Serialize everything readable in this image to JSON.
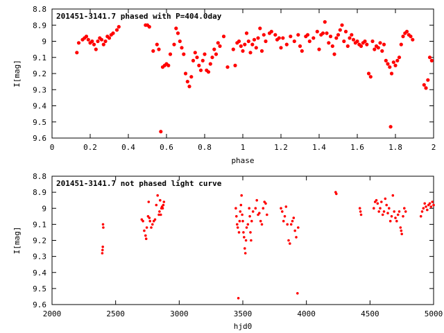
{
  "chart_data": [
    {
      "type": "scatter",
      "title": "201451-3141.7 phased with P=404.0day",
      "xlabel": "phase",
      "ylabel": "I[mag]",
      "xlim": [
        0,
        2
      ],
      "ylim": [
        9.6,
        8.8
      ],
      "y_inverted": true,
      "xticks": [
        "0",
        "0.2",
        "0.4",
        "0.6",
        "0.8",
        "1",
        "1.2",
        "1.4",
        "1.6",
        "1.8",
        "2"
      ],
      "xtick_values": [
        0,
        0.2,
        0.4,
        0.6,
        0.8,
        1.0,
        1.2,
        1.4,
        1.6,
        1.8,
        2.0
      ],
      "yticks": [
        "8.8",
        "8.9",
        "9",
        "9.1",
        "9.2",
        "9.3",
        "9.4",
        "9.5",
        "9.6"
      ],
      "ytick_values": [
        8.8,
        8.9,
        9.0,
        9.1,
        9.2,
        9.3,
        9.4,
        9.5,
        9.6
      ],
      "marker_color": "#ff0000",
      "points": [
        [
          0.13,
          9.07
        ],
        [
          0.14,
          9.01
        ],
        [
          0.16,
          8.99
        ],
        [
          0.17,
          8.98
        ],
        [
          0.18,
          8.97
        ],
        [
          0.19,
          8.99
        ],
        [
          0.2,
          9.01
        ],
        [
          0.21,
          9.0
        ],
        [
          0.22,
          9.02
        ],
        [
          0.23,
          9.05
        ],
        [
          0.24,
          9.0
        ],
        [
          0.25,
          8.98
        ],
        [
          0.26,
          8.99
        ],
        [
          0.27,
          9.02
        ],
        [
          0.28,
          9.0
        ],
        [
          0.29,
          8.97
        ],
        [
          0.3,
          8.98
        ],
        [
          0.31,
          8.96
        ],
        [
          0.32,
          8.95
        ],
        [
          0.34,
          8.93
        ],
        [
          0.35,
          8.91
        ],
        [
          0.49,
          8.9
        ],
        [
          0.5,
          8.9
        ],
        [
          0.51,
          8.91
        ],
        [
          0.53,
          9.06
        ],
        [
          0.55,
          9.02
        ],
        [
          0.56,
          9.05
        ],
        [
          0.57,
          9.56
        ],
        [
          0.58,
          9.16
        ],
        [
          0.59,
          9.15
        ],
        [
          0.6,
          9.14
        ],
        [
          0.61,
          9.15
        ],
        [
          0.62,
          9.08
        ],
        [
          0.64,
          9.02
        ],
        [
          0.65,
          8.92
        ],
        [
          0.66,
          8.95
        ],
        [
          0.67,
          9.0
        ],
        [
          0.68,
          9.04
        ],
        [
          0.69,
          9.08
        ],
        [
          0.7,
          9.2
        ],
        [
          0.71,
          9.25
        ],
        [
          0.72,
          9.28
        ],
        [
          0.73,
          9.22
        ],
        [
          0.74,
          9.12
        ],
        [
          0.75,
          9.07
        ],
        [
          0.76,
          9.1
        ],
        [
          0.77,
          9.15
        ],
        [
          0.78,
          9.18
        ],
        [
          0.79,
          9.12
        ],
        [
          0.8,
          9.08
        ],
        [
          0.81,
          9.18
        ],
        [
          0.82,
          9.19
        ],
        [
          0.83,
          9.14
        ],
        [
          0.84,
          9.1
        ],
        [
          0.85,
          9.05
        ],
        [
          0.86,
          9.08
        ],
        [
          0.87,
          9.01
        ],
        [
          0.88,
          9.03
        ],
        [
          0.9,
          8.97
        ],
        [
          0.92,
          9.16
        ],
        [
          0.95,
          9.05
        ],
        [
          0.96,
          9.15
        ],
        [
          0.97,
          9.01
        ],
        [
          0.98,
          9.0
        ],
        [
          0.99,
          9.03
        ],
        [
          1.0,
          9.06
        ],
        [
          1.01,
          9.02
        ],
        [
          1.02,
          8.95
        ],
        [
          1.03,
          9.0
        ],
        [
          1.04,
          9.07
        ],
        [
          1.05,
          9.02
        ],
        [
          1.06,
          8.99
        ],
        [
          1.07,
          9.04
        ],
        [
          1.08,
          8.98
        ],
        [
          1.09,
          8.92
        ],
        [
          1.1,
          9.06
        ],
        [
          1.11,
          8.96
        ],
        [
          1.12,
          9.0
        ],
        [
          1.14,
          8.95
        ],
        [
          1.15,
          8.94
        ],
        [
          1.17,
          8.96
        ],
        [
          1.18,
          8.99
        ],
        [
          1.19,
          8.98
        ],
        [
          1.2,
          9.04
        ],
        [
          1.21,
          8.98
        ],
        [
          1.23,
          9.02
        ],
        [
          1.25,
          8.97
        ],
        [
          1.27,
          9.0
        ],
        [
          1.29,
          8.96
        ],
        [
          1.3,
          9.03
        ],
        [
          1.31,
          9.06
        ],
        [
          1.33,
          8.97
        ],
        [
          1.34,
          8.96
        ],
        [
          1.35,
          9.0
        ],
        [
          1.37,
          8.98
        ],
        [
          1.39,
          8.94
        ],
        [
          1.4,
          9.05
        ],
        [
          1.41,
          8.96
        ],
        [
          1.42,
          8.95
        ],
        [
          1.43,
          8.88
        ],
        [
          1.44,
          8.95
        ],
        [
          1.45,
          9.01
        ],
        [
          1.46,
          8.97
        ],
        [
          1.47,
          9.03
        ],
        [
          1.48,
          9.08
        ],
        [
          1.49,
          8.98
        ],
        [
          1.5,
          8.96
        ],
        [
          1.51,
          8.93
        ],
        [
          1.52,
          8.9
        ],
        [
          1.53,
          9.0
        ],
        [
          1.54,
          8.94
        ],
        [
          1.55,
          9.03
        ],
        [
          1.56,
          8.98
        ],
        [
          1.57,
          8.96
        ],
        [
          1.58,
          8.99
        ],
        [
          1.59,
          9.01
        ],
        [
          1.6,
          9.0
        ],
        [
          1.61,
          9.02
        ],
        [
          1.62,
          9.03
        ],
        [
          1.63,
          9.01
        ],
        [
          1.64,
          9.0
        ],
        [
          1.65,
          9.02
        ],
        [
          1.66,
          9.2
        ],
        [
          1.67,
          9.22
        ],
        [
          1.68,
          9.0
        ],
        [
          1.69,
          9.05
        ],
        [
          1.7,
          9.03
        ],
        [
          1.71,
          9.04
        ],
        [
          1.72,
          9.01
        ],
        [
          1.73,
          9.06
        ],
        [
          1.74,
          9.02
        ],
        [
          1.75,
          9.12
        ],
        [
          1.76,
          9.14
        ],
        [
          1.77,
          9.16
        ],
        [
          1.775,
          9.53
        ],
        [
          1.78,
          9.2
        ],
        [
          1.79,
          9.13
        ],
        [
          1.8,
          9.15
        ],
        [
          1.81,
          9.12
        ],
        [
          1.82,
          9.1
        ],
        [
          1.83,
          9.02
        ],
        [
          1.84,
          8.97
        ],
        [
          1.85,
          8.95
        ],
        [
          1.86,
          8.94
        ],
        [
          1.87,
          8.96
        ],
        [
          1.88,
          8.97
        ],
        [
          1.89,
          8.99
        ],
        [
          1.95,
          9.27
        ],
        [
          1.96,
          9.29
        ],
        [
          1.97,
          9.24
        ],
        [
          1.98,
          9.1
        ],
        [
          1.99,
          9.12
        ]
      ]
    },
    {
      "type": "scatter",
      "title": "201451-3141.7 not phased light curve",
      "xlabel": "hjd0",
      "ylabel": "I[mag]",
      "xlim": [
        2000,
        5000
      ],
      "ylim": [
        9.6,
        8.8
      ],
      "y_inverted": true,
      "xticks": [
        "2000",
        "2500",
        "3000",
        "3500",
        "4000",
        "4500",
        "5000"
      ],
      "xtick_values": [
        2000,
        2500,
        3000,
        3500,
        4000,
        4500,
        5000
      ],
      "yticks": [
        "8.8",
        "8.9",
        "9",
        "9.1",
        "9.2",
        "9.3",
        "9.4",
        "9.5",
        "9.6"
      ],
      "ytick_values": [
        8.8,
        8.9,
        9.0,
        9.1,
        9.2,
        9.3,
        9.4,
        9.5,
        9.6
      ],
      "marker_color": "#ff0000",
      "points": [
        [
          2395,
          9.28
        ],
        [
          2397,
          9.26
        ],
        [
          2399,
          9.24
        ],
        [
          2401,
          9.1
        ],
        [
          2403,
          9.12
        ],
        [
          2705,
          9.07
        ],
        [
          2715,
          9.08
        ],
        [
          2725,
          9.14
        ],
        [
          2735,
          9.17
        ],
        [
          2740,
          9.19
        ],
        [
          2745,
          9.12
        ],
        [
          2755,
          9.05
        ],
        [
          2760,
          8.96
        ],
        [
          2765,
          9.06
        ],
        [
          2770,
          9.08
        ],
        [
          2780,
          9.12
        ],
        [
          2790,
          9.1
        ],
        [
          2800,
          9.08
        ],
        [
          2810,
          9.07
        ],
        [
          2820,
          8.98
        ],
        [
          2830,
          8.92
        ],
        [
          2840,
          9.04
        ],
        [
          2845,
          9.02
        ],
        [
          2850,
          8.95
        ],
        [
          2855,
          9.04
        ],
        [
          2860,
          9.0
        ],
        [
          2865,
          8.99
        ],
        [
          2870,
          9.0
        ],
        [
          2875,
          8.98
        ],
        [
          2880,
          8.96
        ],
        [
          3445,
          9.0
        ],
        [
          3450,
          9.05
        ],
        [
          3455,
          9.1
        ],
        [
          3460,
          9.12
        ],
        [
          3465,
          9.56
        ],
        [
          3470,
          9.15
        ],
        [
          3475,
          9.08
        ],
        [
          3480,
          9.02
        ],
        [
          3485,
          8.98
        ],
        [
          3490,
          8.92
        ],
        [
          3495,
          9.04
        ],
        [
          3500,
          9.08
        ],
        [
          3505,
          9.15
        ],
        [
          3510,
          9.18
        ],
        [
          3515,
          9.25
        ],
        [
          3520,
          9.28
        ],
        [
          3525,
          9.2
        ],
        [
          3530,
          9.12
        ],
        [
          3540,
          9.1
        ],
        [
          3550,
          9.0
        ],
        [
          3555,
          9.05
        ],
        [
          3560,
          9.15
        ],
        [
          3565,
          9.2
        ],
        [
          3570,
          9.08
        ],
        [
          3580,
          9.02
        ],
        [
          3600,
          9.0
        ],
        [
          3610,
          8.95
        ],
        [
          3620,
          9.04
        ],
        [
          3630,
          9.03
        ],
        [
          3640,
          9.08
        ],
        [
          3650,
          9.1
        ],
        [
          3660,
          9.0
        ],
        [
          3670,
          8.96
        ],
        [
          3680,
          8.97
        ],
        [
          3690,
          9.04
        ],
        [
          3800,
          9.0
        ],
        [
          3810,
          9.02
        ],
        [
          3820,
          9.08
        ],
        [
          3830,
          9.05
        ],
        [
          3840,
          8.99
        ],
        [
          3850,
          9.1
        ],
        [
          3860,
          9.2
        ],
        [
          3870,
          9.22
        ],
        [
          3880,
          9.1
        ],
        [
          3890,
          9.08
        ],
        [
          3900,
          9.06
        ],
        [
          3910,
          9.14
        ],
        [
          3920,
          9.18
        ],
        [
          3930,
          9.53
        ],
        [
          3935,
          9.12
        ],
        [
          4230,
          8.9
        ],
        [
          4235,
          8.91
        ],
        [
          4420,
          9.0
        ],
        [
          4425,
          9.02
        ],
        [
          4430,
          9.04
        ],
        [
          4530,
          9.0
        ],
        [
          4540,
          8.96
        ],
        [
          4550,
          8.95
        ],
        [
          4560,
          8.97
        ],
        [
          4570,
          9.02
        ],
        [
          4580,
          9.0
        ],
        [
          4590,
          8.96
        ],
        [
          4600,
          9.04
        ],
        [
          4610,
          9.02
        ],
        [
          4620,
          8.94
        ],
        [
          4630,
          8.98
        ],
        [
          4640,
          9.03
        ],
        [
          4650,
          9.0
        ],
        [
          4660,
          9.08
        ],
        [
          4670,
          9.05
        ],
        [
          4680,
          8.92
        ],
        [
          4690,
          9.02
        ],
        [
          4700,
          9.06
        ],
        [
          4710,
          9.08
        ],
        [
          4720,
          9.04
        ],
        [
          4730,
          9.02
        ],
        [
          4740,
          9.12
        ],
        [
          4745,
          9.14
        ],
        [
          4750,
          9.16
        ],
        [
          4760,
          9.05
        ],
        [
          4770,
          9.0
        ],
        [
          4780,
          9.02
        ],
        [
          4900,
          9.05
        ],
        [
          4910,
          9.02
        ],
        [
          4920,
          9.0
        ],
        [
          4930,
          8.97
        ],
        [
          4940,
          8.99
        ],
        [
          4950,
          9.01
        ],
        [
          4960,
          8.98
        ],
        [
          4970,
          8.97
        ],
        [
          4980,
          8.99
        ],
        [
          4990,
          8.96
        ],
        [
          5000,
          8.98
        ]
      ]
    }
  ]
}
